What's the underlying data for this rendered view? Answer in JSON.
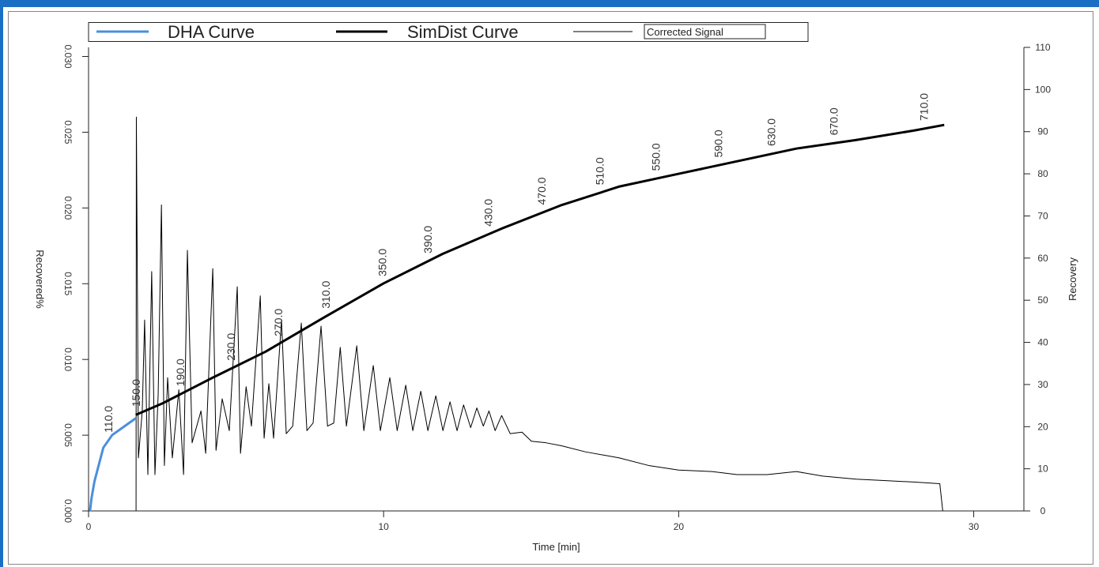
{
  "chart_data": {
    "type": "line",
    "x_label": "Time [min]",
    "y_label": "Recovered%",
    "y2_label": "Recovery",
    "xlim": [
      0,
      31.7
    ],
    "xticks": [
      0,
      10,
      20,
      30
    ],
    "ylim": [
      0,
      0.0306
    ],
    "yticks": [
      {
        "value": 0,
        "label": "0.000"
      },
      0.005,
      {
        "value": 0.01,
        "label": "0.010"
      },
      0.015,
      {
        "value": 0.02,
        "label": "0.020"
      },
      0.025,
      {
        "value": 0.03,
        "label": "0.030"
      }
    ],
    "y2lim": [
      0,
      110
    ],
    "y2ticks": [
      0,
      10,
      20,
      30,
      40,
      50,
      60,
      70,
      80,
      90,
      100,
      110
    ],
    "series": [
      {
        "name": "DHA Curve",
        "color": "#4a8fdc",
        "axis": "y2",
        "x": [
          0.05,
          0.1,
          0.2,
          0.35,
          0.5,
          0.8,
          1.2,
          1.6
        ],
        "values": [
          0,
          3,
          7,
          11,
          15,
          18,
          20,
          22
        ]
      },
      {
        "name": "SimDist Curve",
        "color": "#000000",
        "axis": "y2",
        "x": [
          1.6,
          2.5,
          4.2,
          6,
          8,
          10,
          12,
          14,
          16,
          18,
          20,
          22,
          24,
          26,
          28,
          29
        ],
        "values": [
          22.8,
          25.5,
          31.6,
          37.8,
          46,
          54,
          61,
          67,
          72.5,
          77,
          80,
          83,
          86,
          88,
          90.3,
          91.6
        ]
      },
      {
        "name": "Corrected Signal",
        "color": "#000000",
        "x": [
          1.61,
          1.62,
          1.69,
          1.82,
          1.9,
          2.01,
          2.14,
          2.25,
          2.36,
          2.47,
          2.57,
          2.68,
          2.84,
          3.06,
          3.22,
          3.35,
          3.51,
          3.81,
          3.97,
          4.21,
          4.32,
          4.53,
          4.77,
          5.04,
          5.15,
          5.34,
          5.52,
          5.82,
          5.95,
          6.11,
          6.27,
          6.54,
          6.7,
          6.92,
          7.21,
          7.4,
          7.61,
          7.88,
          8.1,
          8.31,
          8.53,
          8.74,
          9.09,
          9.33,
          9.65,
          9.89,
          10.21,
          10.46,
          10.75,
          10.99,
          11.26,
          11.5,
          11.77,
          12.01,
          12.25,
          12.49,
          12.71,
          12.95,
          13.16,
          13.38,
          13.57,
          13.78,
          14.0,
          14.29,
          14.69,
          15.01,
          15.5,
          16.03,
          16.84,
          17.99,
          18.98,
          20.0,
          21.13,
          21.98,
          23.0,
          23.99,
          24.88,
          26.01,
          27.02,
          28.02,
          28.85,
          28.95
        ],
        "values": [
          0,
          0.026,
          0.0035,
          0.0066,
          0.0126,
          0.0024,
          0.0158,
          0.0024,
          0.0077,
          0.0202,
          0.003,
          0.0088,
          0.0035,
          0.008,
          0.0024,
          0.0172,
          0.0045,
          0.0066,
          0.0038,
          0.016,
          0.004,
          0.0074,
          0.0053,
          0.0148,
          0.0038,
          0.0082,
          0.0056,
          0.0142,
          0.0048,
          0.0084,
          0.0048,
          0.0126,
          0.0051,
          0.0056,
          0.0124,
          0.0053,
          0.0058,
          0.0122,
          0.0056,
          0.0058,
          0.0108,
          0.0056,
          0.0109,
          0.0053,
          0.0096,
          0.0053,
          0.0088,
          0.0053,
          0.0083,
          0.0053,
          0.0079,
          0.0053,
          0.0076,
          0.0053,
          0.0072,
          0.0053,
          0.007,
          0.0055,
          0.0068,
          0.0056,
          0.0066,
          0.0053,
          0.0063,
          0.0051,
          0.0052,
          0.0046,
          0.0045,
          0.0043,
          0.0039,
          0.0035,
          0.003,
          0.0027,
          0.0026,
          0.0024,
          0.0024,
          0.0026,
          0.0023,
          0.0021,
          0.002,
          0.0019,
          0.0018,
          0
        ]
      }
    ],
    "annotations": [
      {
        "text": "110.0",
        "x": 0.67
      },
      {
        "text": "150.0",
        "x": 1.61
      },
      {
        "text": "190.0",
        "x": 3.11
      },
      {
        "text": "230.0",
        "x": 4.83
      },
      {
        "text": "270.0",
        "x": 6.43
      },
      {
        "text": "310.0",
        "x": 8.04
      },
      {
        "text": "350.0",
        "x": 9.95
      },
      {
        "text": "390.0",
        "x": 11.5
      },
      {
        "text": "430.0",
        "x": 13.54
      },
      {
        "text": "470.0",
        "x": 15.36
      },
      {
        "text": "510.0",
        "x": 17.32
      },
      {
        "text": "550.0",
        "x": 19.22
      },
      {
        "text": "590.0",
        "x": 21.34
      },
      {
        "text": "630.0",
        "x": 23.14
      },
      {
        "text": "670.0",
        "x": 25.25
      },
      {
        "text": "710.0",
        "x": 28.31
      }
    ]
  }
}
